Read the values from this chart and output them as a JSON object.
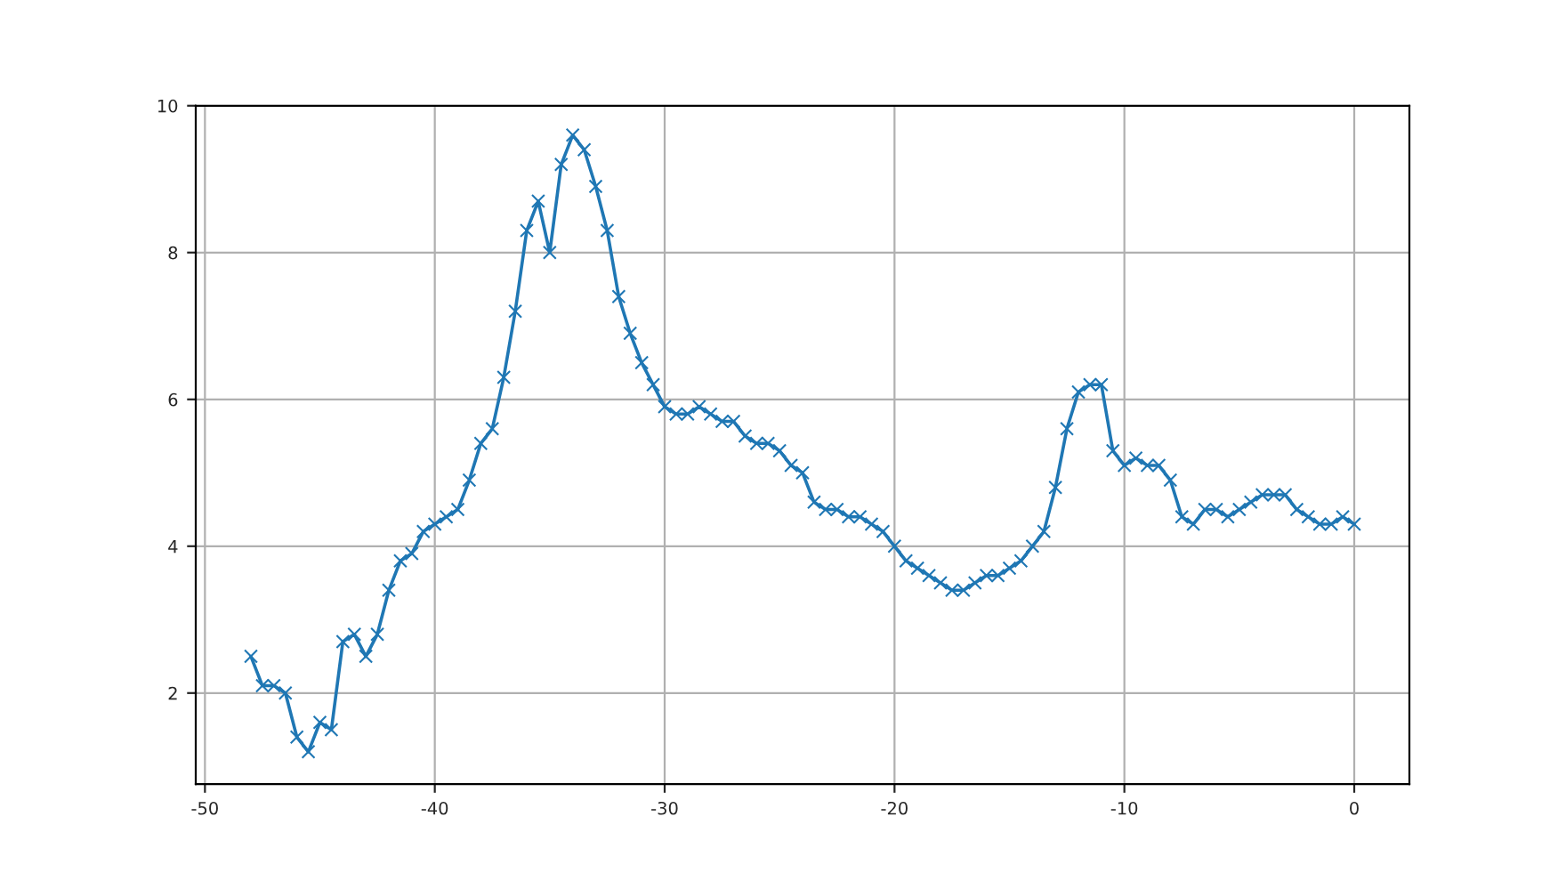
{
  "chart_data": {
    "type": "line",
    "x": [
      -48,
      -47.5,
      -47,
      -46.5,
      -46,
      -45.5,
      -45,
      -44.5,
      -44,
      -43.5,
      -43,
      -42.5,
      -42,
      -41.5,
      -41,
      -40.5,
      -40,
      -39.5,
      -39,
      -38.5,
      -38,
      -37.5,
      -37,
      -36.5,
      -36,
      -35.5,
      -35,
      -34.5,
      -34,
      -33.5,
      -33,
      -32.5,
      -32,
      -31.5,
      -31,
      -30.5,
      -30,
      -29.5,
      -29,
      -28.5,
      -28,
      -27.5,
      -27,
      -26.5,
      -26,
      -25.5,
      -25,
      -24.5,
      -24,
      -23.5,
      -23,
      -22.5,
      -22,
      -21.5,
      -21,
      -20.5,
      -20,
      -19.5,
      -19,
      -18.5,
      -18,
      -17.5,
      -17,
      -16.5,
      -16,
      -15.5,
      -15,
      -14.5,
      -14,
      -13.5,
      -13,
      -12.5,
      -12,
      -11.5,
      -11,
      -10.5,
      -10,
      -9.5,
      -9,
      -8.5,
      -8,
      -7.5,
      -7,
      -6.5,
      -6,
      -5.5,
      -5,
      -4.5,
      -4,
      -3.5,
      -3,
      -2.5,
      -2,
      -1.5,
      -1,
      -0.5,
      0
    ],
    "series": [
      {
        "color": "#1f77b4",
        "values": [
          2.5,
          2.1,
          2.1,
          2.0,
          1.4,
          1.2,
          1.6,
          1.5,
          2.7,
          2.8,
          2.5,
          2.8,
          3.4,
          3.8,
          3.9,
          4.2,
          4.3,
          4.4,
          4.5,
          4.9,
          5.4,
          5.6,
          6.3,
          7.2,
          8.3,
          8.7,
          8.0,
          9.2,
          9.6,
          9.4,
          8.9,
          8.3,
          7.4,
          6.9,
          6.5,
          6.2,
          5.9,
          5.8,
          5.8,
          5.9,
          5.8,
          5.7,
          5.7,
          5.5,
          5.4,
          5.4,
          5.3,
          5.1,
          5.0,
          4.6,
          4.5,
          4.5,
          4.4,
          4.4,
          4.3,
          4.2,
          4.0,
          3.8,
          3.7,
          3.6,
          3.5,
          3.4,
          3.4,
          3.5,
          3.6,
          3.6,
          3.7,
          3.8,
          4.0,
          4.2,
          4.8,
          5.6,
          6.1,
          6.2,
          6.2,
          5.3,
          5.1,
          5.2,
          5.1,
          5.1,
          4.9,
          4.4,
          4.3,
          4.5,
          4.5,
          4.4,
          4.5,
          4.6,
          4.7,
          4.7,
          4.7,
          4.5,
          4.4,
          4.3,
          4.3,
          4.4,
          4.3
        ]
      }
    ],
    "xlim": [
      -50.4,
      2.4
    ],
    "xticks": [
      -50,
      -40,
      -30,
      -20,
      -10,
      0
    ],
    "ylim": [
      0.76,
      10
    ],
    "yticks": [
      2,
      4,
      6,
      8,
      10
    ],
    "grid": true,
    "marker": "cross",
    "line_style": "solid"
  }
}
